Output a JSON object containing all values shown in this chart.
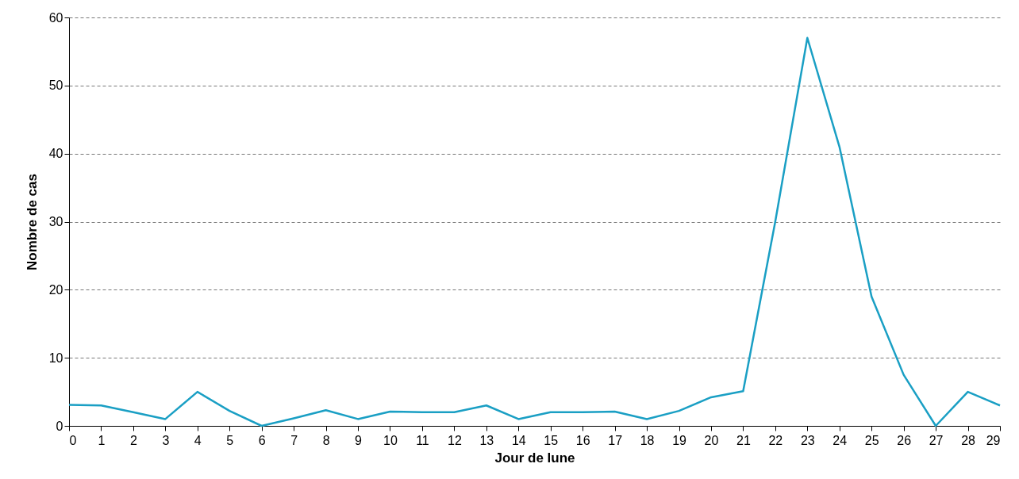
{
  "chart_data": {
    "type": "line",
    "xlabel": "Jour de lune",
    "ylabel": "Nombre de cas",
    "x": [
      0,
      1,
      2,
      3,
      4,
      5,
      6,
      7,
      8,
      9,
      10,
      11,
      12,
      13,
      14,
      15,
      16,
      17,
      18,
      19,
      20,
      21,
      22,
      23,
      24,
      25,
      26,
      27,
      28,
      29
    ],
    "series": [
      {
        "color": "#1a9fc4",
        "values": [
          3.1,
          3,
          2,
          1,
          5,
          2.2,
          0,
          1.1,
          2.3,
          1,
          2.1,
          2,
          2,
          3,
          1,
          2,
          2,
          2.1,
          1,
          2.2,
          4.2,
          5.1,
          30,
          57,
          41,
          19,
          7.5,
          0,
          5,
          3
        ]
      }
    ],
    "xlim": [
      0,
      29
    ],
    "xticks": [
      0,
      1,
      2,
      3,
      4,
      5,
      6,
      7,
      8,
      9,
      10,
      11,
      12,
      13,
      14,
      15,
      16,
      17,
      18,
      19,
      20,
      21,
      22,
      23,
      24,
      25,
      26,
      27,
      28,
      29
    ],
    "ylim": [
      0,
      60
    ],
    "yticks": [
      0,
      10,
      20,
      30,
      40,
      50,
      60
    ],
    "grid": "y",
    "marker": "none",
    "line_style": "solid"
  }
}
